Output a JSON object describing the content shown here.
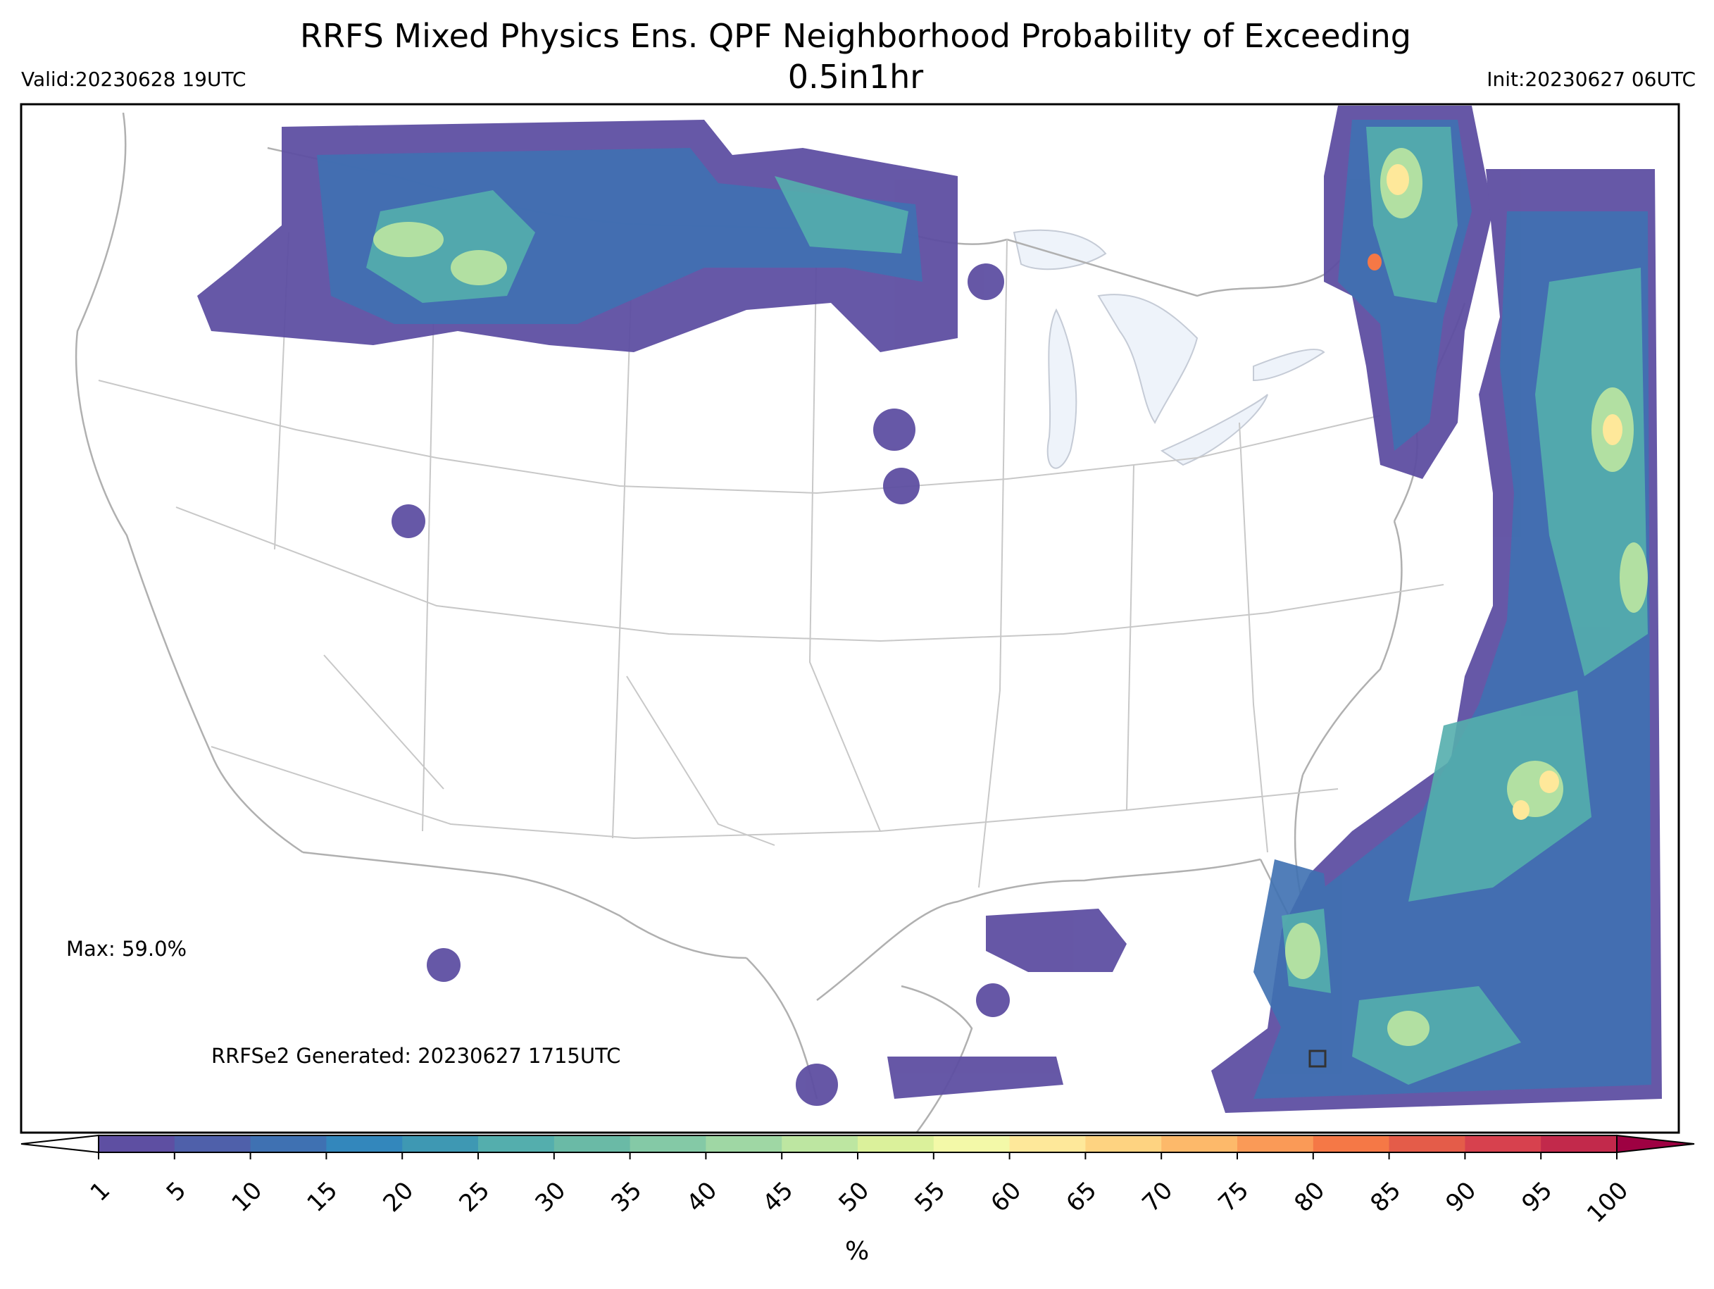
{
  "title": "RRFS Mixed Physics Ens. QPF Neighborhood Probability of Exceeding 0.5in1hr",
  "valid": "Valid:20230628 19UTC",
  "init": "Init:20230627 06UTC",
  "max_text": "Max: 59.0%",
  "generated_text": "RRFSe2 Generated: 20230627 1715UTC",
  "colorbar": {
    "unit": "%",
    "ticks": [
      "1",
      "5",
      "10",
      "15",
      "20",
      "25",
      "30",
      "35",
      "40",
      "45",
      "50",
      "55",
      "60",
      "65",
      "70",
      "75",
      "80",
      "85",
      "90",
      "95",
      "100"
    ],
    "colors": [
      "#5e4fa2",
      "#4f60aa",
      "#3f71b2",
      "#3387bc",
      "#3e98b3",
      "#54aead",
      "#6abaa6",
      "#84c9a6",
      "#9fd7a4",
      "#bde6a1",
      "#dbf19b",
      "#f3f9a8",
      "#fee89a",
      "#fed381",
      "#fdb96a",
      "#fa9a57",
      "#f57846",
      "#e45c49",
      "#d7414e",
      "#c2294b",
      "#9e0142"
    ]
  }
}
